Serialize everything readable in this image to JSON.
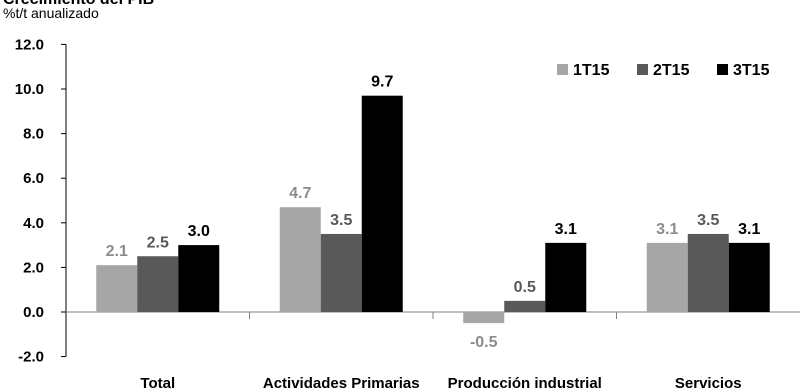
{
  "chart_data": {
    "type": "bar",
    "title": "Crecimiento del PIB",
    "unit_label": "%t/t anualizado",
    "categories": [
      "Total",
      "Actividades Primarias",
      "Producción industrial",
      "Servicios"
    ],
    "series": [
      {
        "name": "1T15",
        "values": [
          2.1,
          4.7,
          -0.5,
          3.1
        ],
        "color": "#a6a6a6",
        "label_color": "#8c8c8c"
      },
      {
        "name": "2T15",
        "values": [
          2.5,
          3.5,
          0.5,
          3.5
        ],
        "color": "#595959",
        "label_color": "#595959"
      },
      {
        "name": "3T15",
        "values": [
          3.0,
          9.7,
          3.1,
          3.1
        ],
        "color": "#000000",
        "label_color": "#000000"
      }
    ],
    "y_ticks": [
      "12.0",
      "10.0",
      "8.0",
      "6.0",
      "4.0",
      "2.0",
      "0.0",
      "-2.0"
    ],
    "ylim": [
      -2,
      12
    ],
    "grid": false,
    "legend_position": "top-right"
  }
}
